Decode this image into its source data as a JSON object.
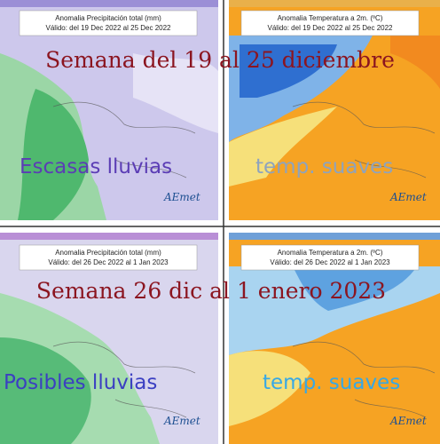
{
  "weeks": [
    {
      "heading": "Semana del 19 al 25 diciembre",
      "panels": [
        {
          "title": "Anomalia Precipitación total (mm)",
          "valid": "Válido: del 19 Dec 2022 al 25 Dec 2022",
          "caption": "Escasas lluvias",
          "logo": "AEmet"
        },
        {
          "title": "Anomalia Temperatura a 2m. (ºC)",
          "valid": "Válido: del 19 Dec 2022 al 25 Dec 2022",
          "caption": "temp. suaves",
          "logo": "AEmet"
        }
      ]
    },
    {
      "heading": "Semana 26 dic al 1 enero 2023",
      "panels": [
        {
          "title": "Anomalia Precipitación total (mm)",
          "valid": "Válido: del 26 Dec 2022 al 1 Jan 2023",
          "caption": "Posibles lluvias",
          "logo": "AEmet"
        },
        {
          "title": "Anomalia Temperatura a 2m. (ºC)",
          "valid": "Válido: del 26 Dec 2022 al 1 Jan 2023",
          "caption": "temp. suaves",
          "logo": "AEmet"
        }
      ]
    }
  ]
}
